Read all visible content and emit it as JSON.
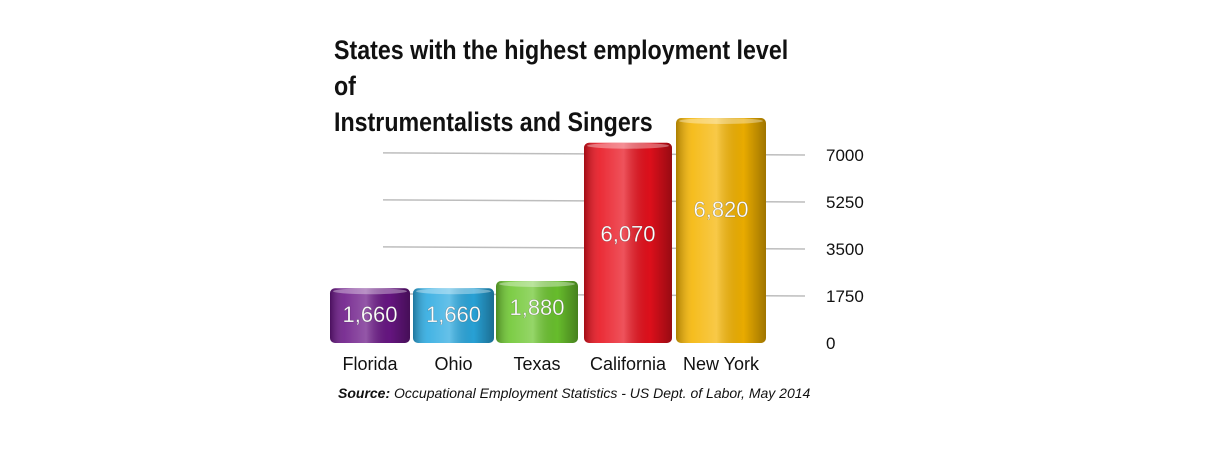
{
  "chart_data": {
    "type": "bar",
    "title_lines": [
      "States with the highest employment level of",
      "Instrumentalists and Singers"
    ],
    "categories": [
      "Florida",
      "Ohio",
      "Texas",
      "California",
      "New York"
    ],
    "values": [
      1660,
      1660,
      1880,
      6070,
      6820
    ],
    "value_labels": [
      "1,660",
      "1,660",
      "1,880",
      "6,070",
      "6,820"
    ],
    "colors": [
      "#6a1686",
      "#2aa9e0",
      "#6cc62e",
      "#e8101c",
      "#f5b400"
    ],
    "y_ticks": [
      0,
      1750,
      3500,
      5250,
      7000
    ],
    "y_tick_labels": [
      "0",
      "1750",
      "3500",
      "5250",
      "7000"
    ],
    "ylim": [
      0,
      7000
    ],
    "axis_side": "right",
    "grid": true
  },
  "source": {
    "label": "Source:",
    "text": " Occupational Employment Statistics - US Dept. of Labor, May 2014"
  }
}
